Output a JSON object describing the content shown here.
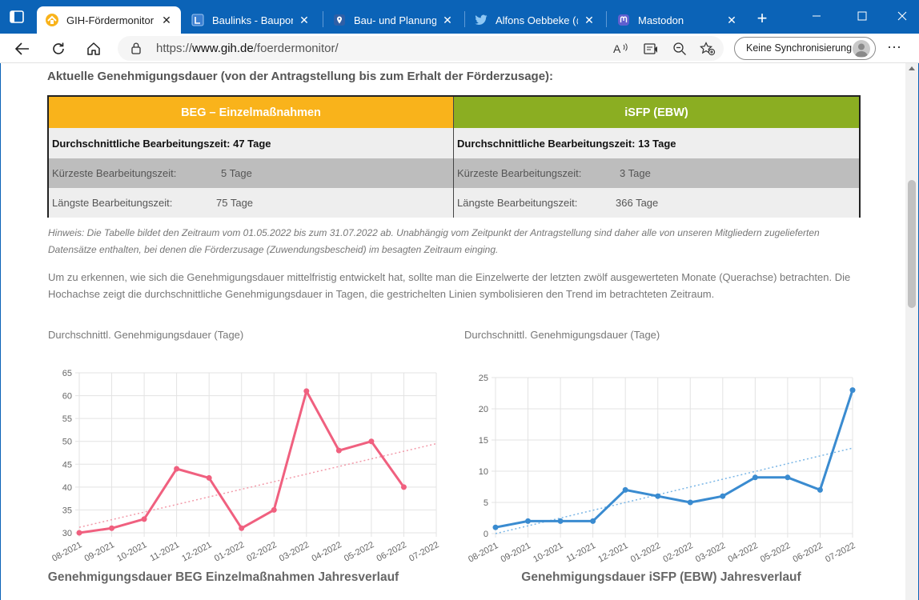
{
  "browser": {
    "tabs": [
      {
        "title": "GIH-Fördermonitor -",
        "active": true,
        "favicon": "gih-logo-icon"
      },
      {
        "title": "Baulinks - Bauportal",
        "active": false,
        "favicon": "baulinks-icon"
      },
      {
        "title": "Bau- und Planungsp",
        "active": false,
        "favicon": "map-pin-icon"
      },
      {
        "title": "Alfons Oebbeke (@c",
        "active": false,
        "favicon": "twitter-bird-icon"
      },
      {
        "title": "Mastodon",
        "active": false,
        "favicon": "mastodon-icon"
      }
    ],
    "url": {
      "protocol": "https://",
      "host": "www.gih.de",
      "path": "/foerdermonitor/"
    },
    "sync_label": "Keine Synchronisierung",
    "accent": "#0b63b7"
  },
  "page": {
    "section_title": "Aktuelle Genehmigungsdauer (von der Antragstellung bis zum Erhalt der Förderzusage):",
    "table": {
      "beg": {
        "header": "BEG – Einzelmaßnahmen",
        "avg": "Durchschnittliche Bearbeitungszeit: 47 Tage",
        "min_label": "Kürzeste Bearbeitungszeit:",
        "min_value": "5 Tage",
        "max_label": "Längste Bearbeitungszeit:",
        "max_value": "75 Tage",
        "color": "#f9b31b"
      },
      "isfp": {
        "header": "iSFP (EBW)",
        "avg": "Durchschnittliche Bearbeitungszeit: 13 Tage",
        "min_label": "Kürzeste Bearbeitungszeit:",
        "min_value": "3 Tage",
        "max_label": "Längste Bearbeitungszeit:",
        "max_value": "366 Tage",
        "color": "#8bae22"
      }
    },
    "hint": "Hinweis: Die Tabelle bildet den Zeitraum vom 01.05.2022 bis zum 31.07.2022 ab. Unabhängig vom Zeitpunkt der Antragstellung sind daher alle von unseren Mitgliedern zugelieferten Datensätze enthalten, bei denen die Förderzusage (Zuwendungsbescheid) im besagten Zeitraum einging.",
    "paragraph": "Um zu erkennen, wie sich die Genehmigungsdauer mittelfristig entwickelt hat, sollte man die Einzelwerte der letzten zwölf ausgewerteten Monate (Querachse) betrachten. Die Hochachse zeigt die durchschnittliche Genehmigungsdauer in Tagen, die gestrichelten Linien symbolisieren den Trend im betrachteten Zeitraum."
  },
  "chart_data": [
    {
      "type": "line",
      "caption": "Durchschnittl. Genehmigungsdauer (Tage)",
      "title": "Genehmigungsdauer BEG Einzelmaßnahmen Jahresverlauf",
      "categories": [
        "08-2021",
        "09-2021",
        "10-2021",
        "11-2021",
        "12-2021",
        "01-2022",
        "02-2022",
        "03-2022",
        "04-2022",
        "05-2022",
        "06-2022",
        "07-2022"
      ],
      "series": [
        {
          "values": [
            30,
            31,
            33,
            44,
            42,
            31,
            35,
            61,
            48,
            50,
            40,
            null
          ],
          "color": "#f0607f"
        }
      ],
      "trend": {
        "start": 31.2,
        "end": 49.5,
        "color": "#f29aa9"
      },
      "ylim": [
        30,
        65
      ],
      "yticks": [
        30,
        35,
        40,
        45,
        50,
        55,
        60,
        65
      ],
      "grid": true
    },
    {
      "type": "line",
      "caption": "Durchschnittl. Genehmigungsdauer (Tage)",
      "title": "Genehmigungsdauer iSFP (EBW) Jahresverlauf",
      "categories": [
        "08-2021",
        "09-2021",
        "10-2021",
        "11-2021",
        "12-2021",
        "01-2022",
        "02-2022",
        "03-2022",
        "04-2022",
        "05-2022",
        "06-2022",
        "07-2022"
      ],
      "series": [
        {
          "values": [
            1,
            2,
            2,
            2,
            7,
            6,
            5,
            6,
            9,
            9,
            7,
            23
          ],
          "color": "#3a8bd0"
        }
      ],
      "trend": {
        "start": 0,
        "end": 13.7,
        "color": "#7ab6e6"
      },
      "ylim": [
        0,
        25
      ],
      "yticks": [
        0,
        5,
        10,
        15,
        20,
        25
      ],
      "grid": true
    }
  ]
}
